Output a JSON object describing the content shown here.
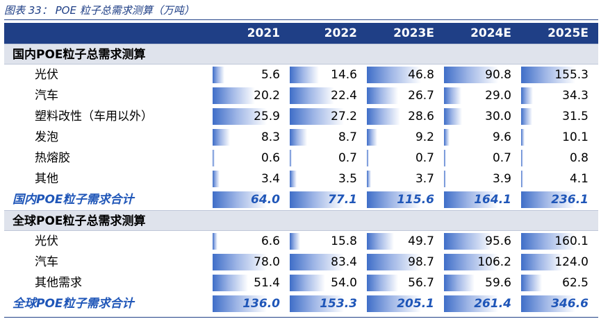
{
  "caption": "图表 33：  POE 粒子总需求测算（万吨）",
  "columns": [
    "2021",
    "2022",
    "2023E",
    "2024E",
    "2025E"
  ],
  "bar_color": "#3f6ec8",
  "header_color": "#1f3f86",
  "total_color": "#1f56b8",
  "sections": [
    {
      "title": "国内POE粒子总需求测算",
      "rows": [
        {
          "label": "光伏",
          "values": [
            "5.6",
            "14.6",
            "46.8",
            "90.8",
            "155.3"
          ]
        },
        {
          "label": "汽车",
          "values": [
            "20.2",
            "22.4",
            "26.7",
            "29.0",
            "34.3"
          ]
        },
        {
          "label": "塑料改性（车用以外）",
          "values": [
            "25.9",
            "27.2",
            "28.6",
            "30.0",
            "31.5"
          ]
        },
        {
          "label": "发泡",
          "values": [
            "8.3",
            "8.7",
            "9.2",
            "9.6",
            "10.1"
          ]
        },
        {
          "label": "热熔胶",
          "values": [
            "0.6",
            "0.7",
            "0.7",
            "0.7",
            "0.8"
          ]
        },
        {
          "label": "其他",
          "values": [
            "3.4",
            "3.5",
            "3.7",
            "3.9",
            "4.1"
          ]
        }
      ],
      "total": {
        "label": "国内POE粒子需求合计",
        "values": [
          "64.0",
          "77.1",
          "115.6",
          "164.1",
          "236.1"
        ]
      }
    },
    {
      "title": "全球POE粒子总需求测算",
      "rows": [
        {
          "label": "光伏",
          "values": [
            "6.6",
            "15.8",
            "49.7",
            "95.6",
            "160.1"
          ]
        },
        {
          "label": "汽车",
          "values": [
            "78.0",
            "83.4",
            "98.7",
            "106.2",
            "124.0"
          ]
        },
        {
          "label": "其他需求",
          "values": [
            "51.4",
            "54.0",
            "56.7",
            "59.6",
            "62.5"
          ]
        }
      ],
      "total": {
        "label": "全球POE粒子需求合计",
        "values": [
          "136.0",
          "153.3",
          "205.1",
          "261.4",
          "346.6"
        ]
      }
    }
  ]
}
